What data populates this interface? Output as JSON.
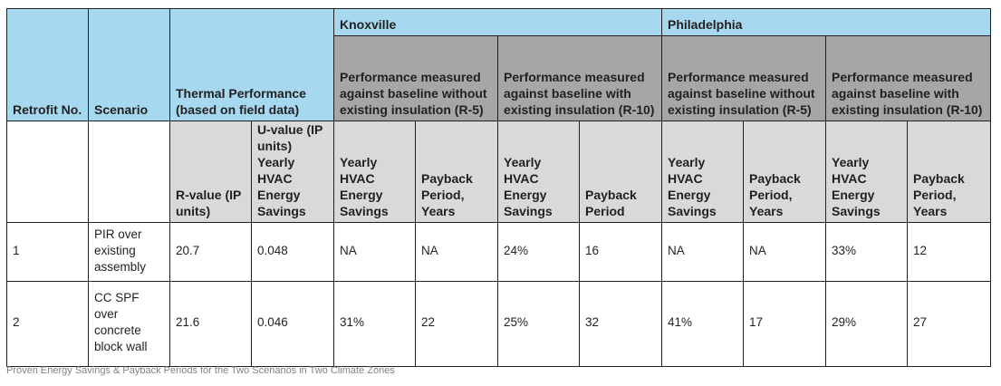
{
  "header": {
    "retrofit_no": "Retrofit No.",
    "scenario": "Scenario",
    "thermal_performance": "Thermal Performance (based on field data)",
    "knoxville": "Knoxville",
    "philadelphia": "Philadelphia",
    "perf_without": "Performance measured against baseline without existing insulation (R-5)",
    "perf_with": "Performance measured against baseline with existing insulation (R-10)",
    "r_value": "R-value (IP units)",
    "u_value": "U-value (IP units) Yearly HVAC Energy Savings",
    "yearly_savings": "Yearly HVAC Energy Savings",
    "payback_years": "Payback Period, Years",
    "payback": "Payback Period"
  },
  "rows": [
    {
      "no": "1",
      "scenario": "PIR over existing assembly",
      "r_value": "20.7",
      "u_value": "0.048",
      "knox_r5_savings": "NA",
      "knox_r5_payback": "NA",
      "knox_r10_savings": "24%",
      "knox_r10_payback": "16",
      "phil_r5_savings": "NA",
      "phil_r5_payback": "NA",
      "phil_r10_savings": "33%",
      "phil_r10_payback": "12"
    },
    {
      "no": "2",
      "scenario": "CC SPF over concrete block wall",
      "r_value": "21.6",
      "u_value": "0.046",
      "knox_r5_savings": "31%",
      "knox_r5_payback": "22",
      "knox_r10_savings": "25%",
      "knox_r10_payback": "32",
      "phil_r5_savings": "41%",
      "phil_r5_payback": "17",
      "phil_r10_savings": "29%",
      "phil_r10_payback": "27"
    }
  ],
  "caption": "Proven Energy Savings & Payback Periods for the Two Scenarios in Two Climate Zones",
  "colors": {
    "header_blue": "#a6d9ef",
    "header_grey": "#a6a6a8",
    "header_light_grey": "#d9d9db"
  }
}
